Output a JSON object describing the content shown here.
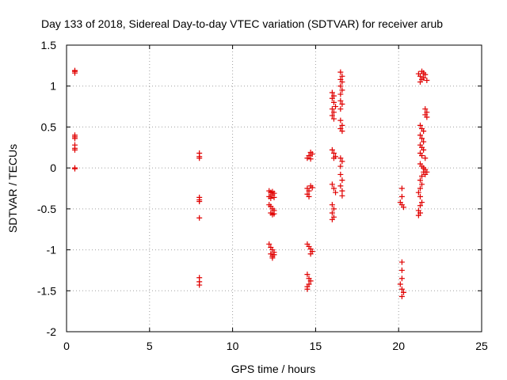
{
  "chart_data": {
    "type": "scatter",
    "title": "Day 133 of 2018, Sidereal Day-to-day VTEC variation (SDTVAR) for receiver arub",
    "xlabel": "GPS time / hours",
    "ylabel": "SDTVAR / TECUs",
    "xlim": [
      0,
      25
    ],
    "ylim": [
      -2,
      1.5
    ],
    "xticks": [
      0,
      5,
      10,
      15,
      20,
      25
    ],
    "yticks": [
      -2,
      -1.5,
      -1,
      -0.5,
      0,
      0.5,
      1,
      1.5
    ],
    "xtick_labels": [
      "0",
      "5",
      "10",
      "15",
      "20",
      "25"
    ],
    "ytick_labels": [
      "-2",
      "-1.5",
      "-1",
      "-0.5",
      "0",
      "0.5",
      "1",
      "1.5"
    ],
    "grid": true,
    "marker": "+",
    "color": "#e00000",
    "series": [
      {
        "name": "SDTVAR",
        "points": [
          [
            0.5,
            1.19
          ],
          [
            0.5,
            1.16
          ],
          [
            0.5,
            1.18
          ],
          [
            0.5,
            0.4
          ],
          [
            0.5,
            0.38
          ],
          [
            0.5,
            0.36
          ],
          [
            0.5,
            0.28
          ],
          [
            0.5,
            0.24
          ],
          [
            0.5,
            0.22
          ],
          [
            0.5,
            0.0
          ],
          [
            0.5,
            -0.01
          ],
          [
            8.0,
            0.18
          ],
          [
            8.0,
            0.14
          ],
          [
            8.0,
            0.12
          ],
          [
            8.0,
            -0.36
          ],
          [
            8.0,
            -0.39
          ],
          [
            8.0,
            -0.41
          ],
          [
            8.0,
            -0.61
          ],
          [
            8.0,
            -1.34
          ],
          [
            8.0,
            -1.39
          ],
          [
            8.0,
            -1.43
          ],
          [
            12.2,
            -0.28
          ],
          [
            12.3,
            -0.3
          ],
          [
            12.4,
            -0.29
          ],
          [
            12.5,
            -0.31
          ],
          [
            12.2,
            -0.35
          ],
          [
            12.3,
            -0.37
          ],
          [
            12.4,
            -0.33
          ],
          [
            12.5,
            -0.36
          ],
          [
            12.2,
            -0.45
          ],
          [
            12.3,
            -0.47
          ],
          [
            12.4,
            -0.5
          ],
          [
            12.5,
            -0.52
          ],
          [
            12.3,
            -0.55
          ],
          [
            12.4,
            -0.57
          ],
          [
            12.5,
            -0.56
          ],
          [
            12.2,
            -0.93
          ],
          [
            12.3,
            -0.97
          ],
          [
            12.4,
            -1.0
          ],
          [
            12.5,
            -1.03
          ],
          [
            12.3,
            -1.05
          ],
          [
            12.4,
            -1.08
          ],
          [
            12.5,
            -1.06
          ],
          [
            12.4,
            -1.1
          ],
          [
            14.5,
            0.12
          ],
          [
            14.6,
            0.15
          ],
          [
            14.7,
            0.11
          ],
          [
            14.8,
            0.17
          ],
          [
            14.7,
            0.19
          ],
          [
            14.5,
            -0.25
          ],
          [
            14.6,
            -0.28
          ],
          [
            14.7,
            -0.22
          ],
          [
            14.8,
            -0.24
          ],
          [
            14.5,
            -0.32
          ],
          [
            14.6,
            -0.35
          ],
          [
            14.5,
            -0.93
          ],
          [
            14.6,
            -0.96
          ],
          [
            14.7,
            -0.99
          ],
          [
            14.8,
            -1.02
          ],
          [
            14.7,
            -1.05
          ],
          [
            14.5,
            -1.3
          ],
          [
            14.6,
            -1.35
          ],
          [
            14.7,
            -1.38
          ],
          [
            14.6,
            -1.42
          ],
          [
            14.5,
            -1.45
          ],
          [
            14.5,
            -1.48
          ],
          [
            16.0,
            0.92
          ],
          [
            16.1,
            0.88
          ],
          [
            16.0,
            0.85
          ],
          [
            16.1,
            0.8
          ],
          [
            16.2,
            0.75
          ],
          [
            16.0,
            0.72
          ],
          [
            16.1,
            0.68
          ],
          [
            16.0,
            0.64
          ],
          [
            16.1,
            0.6
          ],
          [
            16.0,
            0.22
          ],
          [
            16.1,
            0.18
          ],
          [
            16.2,
            0.14
          ],
          [
            16.1,
            0.12
          ],
          [
            16.0,
            -0.2
          ],
          [
            16.1,
            -0.25
          ],
          [
            16.2,
            -0.3
          ],
          [
            16.0,
            -0.45
          ],
          [
            16.1,
            -0.5
          ],
          [
            16.0,
            -0.55
          ],
          [
            16.1,
            -0.6
          ],
          [
            16.0,
            -0.63
          ],
          [
            16.5,
            1.17
          ],
          [
            16.6,
            1.12
          ],
          [
            16.5,
            1.08
          ],
          [
            16.6,
            1.05
          ],
          [
            16.5,
            1.0
          ],
          [
            16.6,
            0.95
          ],
          [
            16.5,
            0.9
          ],
          [
            16.5,
            0.82
          ],
          [
            16.6,
            0.78
          ],
          [
            16.5,
            0.72
          ],
          [
            16.5,
            0.58
          ],
          [
            16.6,
            0.52
          ],
          [
            16.5,
            0.48
          ],
          [
            16.6,
            0.45
          ],
          [
            16.5,
            0.12
          ],
          [
            16.6,
            0.08
          ],
          [
            16.5,
            0.02
          ],
          [
            16.5,
            -0.08
          ],
          [
            16.6,
            -0.15
          ],
          [
            16.5,
            -0.22
          ],
          [
            16.6,
            -0.28
          ],
          [
            16.6,
            -0.34
          ],
          [
            20.2,
            -0.25
          ],
          [
            20.2,
            -0.35
          ],
          [
            20.1,
            -0.42
          ],
          [
            20.2,
            -0.45
          ],
          [
            20.3,
            -0.48
          ],
          [
            20.2,
            -1.15
          ],
          [
            20.2,
            -1.25
          ],
          [
            20.2,
            -1.35
          ],
          [
            20.1,
            -1.42
          ],
          [
            20.2,
            -1.48
          ],
          [
            20.3,
            -1.52
          ],
          [
            20.2,
            -1.57
          ],
          [
            21.2,
            1.15
          ],
          [
            21.3,
            1.12
          ],
          [
            21.4,
            1.18
          ],
          [
            21.5,
            1.1
          ],
          [
            21.3,
            1.05
          ],
          [
            21.4,
            1.08
          ],
          [
            21.6,
            1.14
          ],
          [
            21.7,
            1.07
          ],
          [
            21.5,
            1.16
          ],
          [
            21.6,
            0.72
          ],
          [
            21.7,
            0.68
          ],
          [
            21.6,
            0.65
          ],
          [
            21.7,
            0.62
          ],
          [
            21.3,
            0.52
          ],
          [
            21.4,
            0.48
          ],
          [
            21.5,
            0.45
          ],
          [
            21.3,
            0.4
          ],
          [
            21.4,
            0.36
          ],
          [
            21.5,
            0.32
          ],
          [
            21.3,
            0.28
          ],
          [
            21.4,
            0.25
          ],
          [
            21.5,
            0.22
          ],
          [
            21.3,
            0.18
          ],
          [
            21.4,
            0.15
          ],
          [
            21.6,
            0.12
          ],
          [
            21.3,
            0.05
          ],
          [
            21.4,
            0.02
          ],
          [
            21.5,
            0.0
          ],
          [
            21.6,
            -0.02
          ],
          [
            21.5,
            -0.05
          ],
          [
            21.6,
            -0.08
          ],
          [
            21.7,
            -0.05
          ],
          [
            21.4,
            -0.1
          ],
          [
            21.3,
            -0.15
          ],
          [
            21.4,
            -0.2
          ],
          [
            21.3,
            -0.25
          ],
          [
            21.2,
            -0.3
          ],
          [
            21.3,
            -0.35
          ],
          [
            21.4,
            -0.42
          ],
          [
            21.3,
            -0.46
          ],
          [
            21.2,
            -0.52
          ],
          [
            21.3,
            -0.55
          ],
          [
            21.2,
            -0.58
          ]
        ]
      }
    ]
  }
}
